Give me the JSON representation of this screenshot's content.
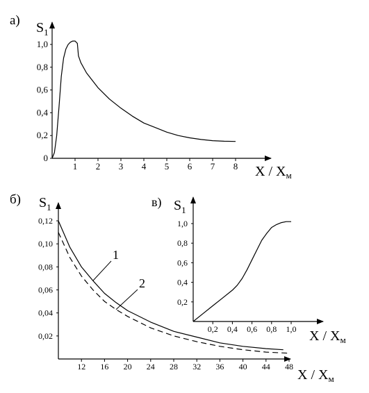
{
  "chart_data": [
    {
      "panel_label": "а)",
      "type": "line",
      "ylabel_main": "S",
      "ylabel_sub": "1",
      "xlabel_main": "X / X",
      "xlabel_sub": "м",
      "xlim": [
        0,
        8.5
      ],
      "ylim": [
        0,
        1.1
      ],
      "x_ticks": [
        "1",
        "2",
        "3",
        "4",
        "5",
        "6",
        "7",
        "8"
      ],
      "x_tick_values": [
        1,
        2,
        3,
        4,
        5,
        6,
        7,
        8
      ],
      "y_ticks": [
        "0",
        "0,2",
        "0,4",
        "0,6",
        "0,8",
        "1,0"
      ],
      "y_tick_values": [
        0,
        0.2,
        0.4,
        0.6,
        0.8,
        1.0
      ],
      "series": [
        {
          "style": "solid",
          "x": [
            0,
            0.1,
            0.2,
            0.3,
            0.4,
            0.5,
            0.6,
            0.7,
            0.8,
            0.9,
            1.0,
            1.1,
            1.15,
            1.25,
            1.5,
            2,
            2.5,
            3,
            3.5,
            4,
            4.5,
            5,
            5.5,
            6,
            6.5,
            7,
            7.5,
            8
          ],
          "y": [
            0,
            0.05,
            0.2,
            0.45,
            0.72,
            0.88,
            0.96,
            1.0,
            1.02,
            1.03,
            1.03,
            1.01,
            0.9,
            0.84,
            0.75,
            0.62,
            0.52,
            0.44,
            0.37,
            0.31,
            0.27,
            0.23,
            0.2,
            0.18,
            0.165,
            0.155,
            0.15,
            0.148
          ]
        }
      ]
    },
    {
      "panel_label": "б)",
      "type": "line",
      "ylabel_main": "S",
      "ylabel_sub": "1",
      "xlabel_main": "X / X",
      "xlabel_sub": "м",
      "xlim": [
        8,
        50
      ],
      "ylim": [
        0,
        0.13
      ],
      "x_ticks": [
        "12",
        "16",
        "20",
        "24",
        "28",
        "32",
        "36",
        "40",
        "44",
        "48"
      ],
      "x_tick_values": [
        12,
        16,
        20,
        24,
        28,
        32,
        36,
        40,
        44,
        48
      ],
      "y_ticks": [
        "0,02",
        "0,04",
        "0,06",
        "0,08",
        "0,10",
        "0,12"
      ],
      "y_tick_values": [
        0.02,
        0.04,
        0.06,
        0.08,
        0.1,
        0.12
      ],
      "series": [
        {
          "name": "1",
          "style": "solid",
          "x": [
            8,
            10,
            12,
            14,
            16,
            18,
            20,
            24,
            28,
            32,
            36,
            40,
            44,
            47
          ],
          "y": [
            0.12,
            0.097,
            0.08,
            0.068,
            0.057,
            0.049,
            0.042,
            0.032,
            0.024,
            0.019,
            0.014,
            0.011,
            0.009,
            0.008
          ]
        },
        {
          "name": "2",
          "style": "dashed",
          "x": [
            8,
            10,
            12,
            14,
            16,
            18,
            20,
            24,
            28,
            32,
            36,
            40,
            44,
            48
          ],
          "y": [
            0.11,
            0.088,
            0.072,
            0.06,
            0.05,
            0.043,
            0.037,
            0.027,
            0.02,
            0.015,
            0.011,
            0.008,
            0.006,
            0.005
          ]
        }
      ]
    },
    {
      "panel_label": "в)",
      "type": "line",
      "ylabel_main": "S",
      "ylabel_sub": "1",
      "xlabel_main": "X / X",
      "xlabel_sub": "м",
      "xlim": [
        0,
        1.1
      ],
      "ylim": [
        0,
        1.1
      ],
      "x_ticks": [
        "0,2",
        "0,4",
        "0,6",
        "0,8",
        "1,0"
      ],
      "x_tick_values": [
        0.2,
        0.4,
        0.6,
        0.8,
        1.0
      ],
      "y_ticks": [
        "0,2",
        "0,4",
        "0,6",
        "0,8",
        "1,0"
      ],
      "y_tick_values": [
        0.2,
        0.4,
        0.6,
        0.8,
        1.0
      ],
      "series": [
        {
          "style": "solid",
          "x": [
            0,
            0.1,
            0.2,
            0.3,
            0.4,
            0.45,
            0.5,
            0.55,
            0.6,
            0.65,
            0.7,
            0.75,
            0.8,
            0.85,
            0.9,
            0.95,
            1.0
          ],
          "y": [
            0,
            0.08,
            0.16,
            0.24,
            0.32,
            0.37,
            0.44,
            0.53,
            0.63,
            0.73,
            0.83,
            0.9,
            0.96,
            0.99,
            1.01,
            1.02,
            1.02
          ]
        }
      ]
    }
  ]
}
